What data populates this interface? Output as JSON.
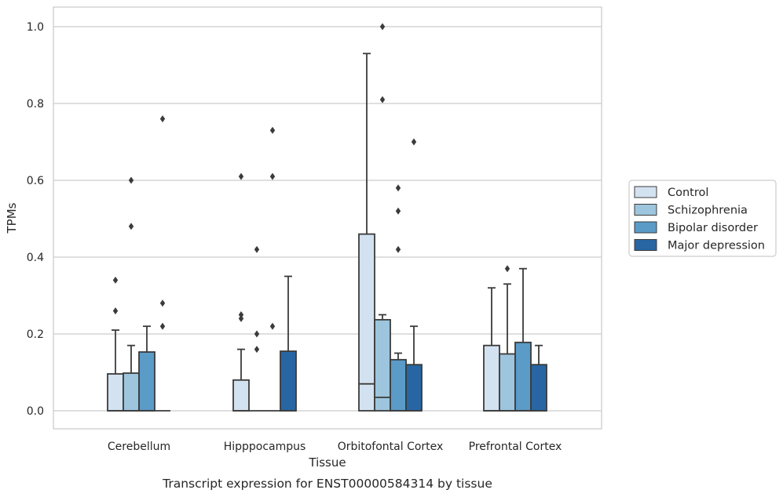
{
  "chart_data": {
    "type": "box",
    "title": "",
    "xlabel": "Tissue",
    "ylabel": "TPMs",
    "caption": "Transcript expression for ENST00000584314 by tissue",
    "ylim": [
      -0.05,
      1.05
    ],
    "yticks": [
      0.0,
      0.2,
      0.4,
      0.6,
      0.8,
      1.0
    ],
    "ytick_labels": [
      "0.0",
      "0.2",
      "0.4",
      "0.6",
      "0.8",
      "1.0"
    ],
    "grid": "horizontal",
    "legend_position": "right",
    "categories": [
      "Cerebellum",
      "Hipppocampus",
      "Orbitofontal Cortex",
      "Prefrontal Cortex"
    ],
    "series": [
      {
        "name": "Control",
        "color": "#d3e2f0",
        "boxes": [
          {
            "q1": 0.0,
            "median": 0.0,
            "q3": 0.096,
            "whislo": 0.0,
            "whishi": 0.21,
            "fliers": [
              0.26,
              0.34
            ]
          },
          {
            "q1": 0.0,
            "median": 0.0,
            "q3": 0.08,
            "whislo": 0.0,
            "whishi": 0.16,
            "fliers": [
              0.24,
              0.25,
              0.61
            ]
          },
          {
            "q1": 0.0,
            "median": 0.07,
            "q3": 0.46,
            "whislo": 0.0,
            "whishi": 0.93,
            "fliers": []
          },
          {
            "q1": 0.0,
            "median": 0.0,
            "q3": 0.17,
            "whislo": 0.0,
            "whishi": 0.32,
            "fliers": []
          }
        ]
      },
      {
        "name": "Schizophrenia",
        "color": "#9dc5dd",
        "boxes": [
          {
            "q1": 0.0,
            "median": 0.0,
            "q3": 0.098,
            "whislo": 0.0,
            "whishi": 0.17,
            "fliers": [
              0.48,
              0.6
            ]
          },
          {
            "q1": 0.0,
            "median": 0.0,
            "q3": 0.0,
            "whislo": 0.0,
            "whishi": 0.0,
            "fliers": [
              0.16,
              0.2,
              0.42
            ]
          },
          {
            "q1": 0.0,
            "median": 0.035,
            "q3": 0.237,
            "whislo": 0.0,
            "whishi": 0.25,
            "fliers": [
              0.81,
              1.0
            ]
          },
          {
            "q1": 0.0,
            "median": 0.0,
            "q3": 0.148,
            "whislo": 0.0,
            "whishi": 0.33,
            "fliers": [
              0.37
            ]
          }
        ]
      },
      {
        "name": "Bipolar disorder",
        "color": "#5a9bc8",
        "boxes": [
          {
            "q1": 0.0,
            "median": 0.0,
            "q3": 0.153,
            "whislo": 0.0,
            "whishi": 0.22,
            "fliers": []
          },
          {
            "q1": 0.0,
            "median": 0.0,
            "q3": 0.0,
            "whislo": 0.0,
            "whishi": 0.0,
            "fliers": [
              0.22,
              0.61,
              0.73
            ]
          },
          {
            "q1": 0.0,
            "median": 0.0,
            "q3": 0.133,
            "whislo": 0.0,
            "whishi": 0.15,
            "fliers": [
              0.42,
              0.52,
              0.58
            ]
          },
          {
            "q1": 0.0,
            "median": 0.0,
            "q3": 0.178,
            "whislo": 0.0,
            "whishi": 0.37,
            "fliers": []
          }
        ]
      },
      {
        "name": "Major depression",
        "color": "#2766a3",
        "boxes": [
          {
            "q1": 0.0,
            "median": 0.0,
            "q3": 0.0,
            "whislo": 0.0,
            "whishi": 0.0,
            "fliers": [
              0.22,
              0.28,
              0.76
            ]
          },
          {
            "q1": 0.0,
            "median": 0.0,
            "q3": 0.155,
            "whislo": 0.0,
            "whishi": 0.35,
            "fliers": []
          },
          {
            "q1": 0.0,
            "median": 0.0,
            "q3": 0.12,
            "whislo": 0.0,
            "whishi": 0.22,
            "fliers": [
              0.7
            ]
          },
          {
            "q1": 0.0,
            "median": 0.0,
            "q3": 0.12,
            "whislo": 0.0,
            "whishi": 0.17,
            "fliers": []
          }
        ]
      }
    ]
  }
}
